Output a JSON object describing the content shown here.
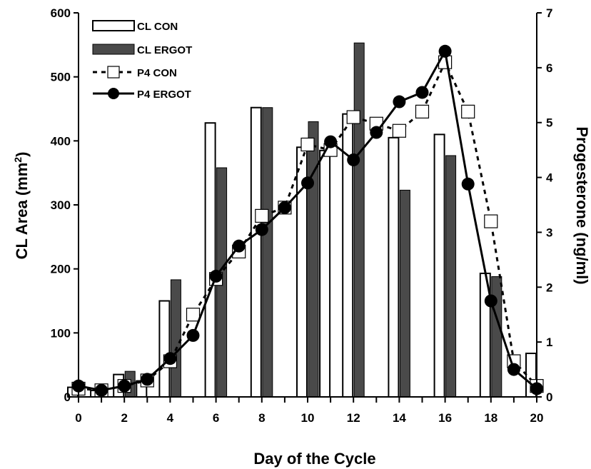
{
  "chart_data": {
    "type": "bar",
    "xlabel": "Day of the Cycle",
    "ylabel": "CL Area (mm",
    "ylabel_sup": "2",
    "ylabel_close": ")",
    "y2label": "Progesterone (ng/ml)",
    "x_ticks": [
      "0",
      "2",
      "4",
      "6",
      "8",
      "10",
      "12",
      "14",
      "16",
      "18",
      "20"
    ],
    "y_ticks": [
      "0",
      "100",
      "200",
      "300",
      "400",
      "500",
      "600"
    ],
    "y2_ticks": [
      "0",
      "1",
      "2",
      "3",
      "4",
      "5",
      "6",
      "7"
    ],
    "xlim": [
      0,
      20
    ],
    "ylim": [
      0,
      600
    ],
    "y2lim": [
      0,
      7
    ],
    "legend_position": "top-left",
    "bar_series": [
      {
        "name": "CL CON",
        "color": "#ffffff",
        "days": [
          0,
          1,
          2,
          3,
          4,
          6,
          8,
          10,
          11,
          12,
          14,
          16,
          18,
          20
        ],
        "values": [
          15,
          10,
          35,
          25,
          150,
          428,
          452,
          390,
          385,
          442,
          405,
          410,
          193,
          68
        ]
      },
      {
        "name": "CL ERGOT",
        "color": "#4a4a4a",
        "days": [
          2,
          4,
          6,
          8,
          10,
          12,
          14,
          16,
          18
        ],
        "values": [
          40,
          183,
          358,
          452,
          430,
          553,
          323,
          377,
          188
        ]
      }
    ],
    "line_series": [
      {
        "name": "P4 CON",
        "style": "dashed",
        "marker": "open-square",
        "days": [
          0,
          1,
          2,
          3,
          4,
          5,
          6,
          7,
          8,
          9,
          10,
          11,
          12,
          13,
          14,
          15,
          16,
          17,
          18,
          19,
          20
        ],
        "values": [
          0.15,
          0.12,
          0.2,
          0.3,
          0.65,
          1.5,
          2.15,
          2.65,
          3.3,
          3.45,
          4.6,
          4.5,
          5.1,
          4.98,
          4.85,
          5.2,
          6.1,
          5.2,
          3.2,
          0.65,
          0.2
        ]
      },
      {
        "name": "P4 ERGOT",
        "style": "solid",
        "marker": "filled-circle",
        "days": [
          0,
          1,
          2,
          3,
          4,
          5,
          6,
          7,
          8,
          9,
          10,
          11,
          12,
          13,
          14,
          15,
          16,
          17,
          18,
          19,
          20
        ],
        "values": [
          0.2,
          0.12,
          0.2,
          0.32,
          0.7,
          1.12,
          2.2,
          2.75,
          3.05,
          3.45,
          3.9,
          4.65,
          4.32,
          4.82,
          5.38,
          5.55,
          6.3,
          3.88,
          1.75,
          0.5,
          0.15
        ]
      }
    ]
  }
}
